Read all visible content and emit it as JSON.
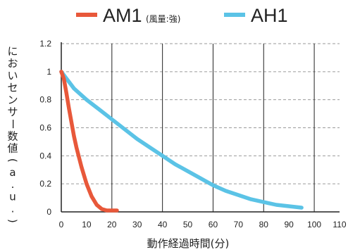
{
  "chart_data": {
    "type": "line",
    "xlabel": "動作経過時間(分)",
    "ylabel": "においセンサー数値(a.u.)",
    "xlim": [
      0,
      110
    ],
    "ylim": [
      0,
      1.2
    ],
    "x_ticks": [
      "0",
      "10",
      "20",
      "30",
      "40",
      "50",
      "60",
      "70",
      "80",
      "90",
      "100",
      "110"
    ],
    "y_ticks": [
      "0",
      "0.2",
      "0.4",
      "0.6",
      "0.8",
      "1",
      "1.2"
    ],
    "grid": "vertical solid at every 20, horizontal dashed",
    "legend_position": "top",
    "series": [
      {
        "name": "AM1",
        "name_note": "(風量:強)",
        "color": "#e8583a",
        "x": [
          0,
          1,
          2,
          3,
          4,
          5,
          6,
          8,
          10,
          12,
          14,
          16,
          18,
          20,
          22
        ],
        "y": [
          1.0,
          0.95,
          0.85,
          0.74,
          0.64,
          0.54,
          0.46,
          0.32,
          0.2,
          0.11,
          0.05,
          0.02,
          0.01,
          0.01,
          0.01
        ]
      },
      {
        "name": "AH1",
        "color": "#5bc3e6",
        "x": [
          0,
          5,
          10,
          15,
          20,
          25,
          30,
          35,
          40,
          45,
          50,
          55,
          60,
          65,
          70,
          75,
          80,
          85,
          90,
          95
        ],
        "y": [
          1.0,
          0.88,
          0.8,
          0.73,
          0.66,
          0.59,
          0.52,
          0.46,
          0.4,
          0.34,
          0.29,
          0.24,
          0.19,
          0.15,
          0.12,
          0.09,
          0.07,
          0.05,
          0.04,
          0.03
        ]
      }
    ]
  }
}
